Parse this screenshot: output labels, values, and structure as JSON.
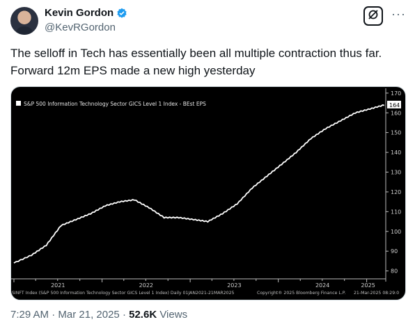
{
  "author": {
    "display_name": "Kevin Gordon",
    "handle": "@KevRGordon",
    "verified": true
  },
  "actions": {
    "grok_icon": "grok-icon",
    "more_icon": "more-icon",
    "more_label": "···"
  },
  "tweet": {
    "line1": "The selloff in Tech has essentially been all multiple contraction thus far.",
    "line2": "Forward 12m EPS made a new high yesterday"
  },
  "meta": {
    "time": "7:29 AM",
    "sep1": " · ",
    "date": "Mar 21, 2025",
    "sep2": " · ",
    "views_count": "52.6K",
    "views_label": " Views"
  },
  "chart_data": {
    "type": "line",
    "legend": "S&P 500 Information Technology Sector GICS Level 1 Index - BEst EPS",
    "last_value_label": "164",
    "x_tick_labels": [
      "2021",
      "2022",
      "2023",
      "2024",
      "2025"
    ],
    "y_ticks": [
      80,
      90,
      100,
      110,
      120,
      130,
      140,
      150,
      160,
      170
    ],
    "ylim": [
      76,
      171
    ],
    "x": [
      "2021-01",
      "2021-03",
      "2021-05",
      "2021-07",
      "2021-09",
      "2021-11",
      "2022-01",
      "2022-03",
      "2022-05",
      "2022-07",
      "2022-09",
      "2022-11",
      "2023-01",
      "2023-03",
      "2023-05",
      "2023-07",
      "2023-09",
      "2023-11",
      "2024-01",
      "2024-03",
      "2024-05",
      "2024-07",
      "2024-09",
      "2024-11",
      "2025-01",
      "2025-03"
    ],
    "values": [
      84,
      88,
      93,
      103,
      106,
      109,
      113,
      115,
      116,
      112,
      107,
      107,
      106,
      105,
      109,
      114,
      122,
      128,
      134,
      140,
      147,
      152,
      156,
      160,
      162,
      164
    ],
    "footer_left": "SINFT Index (S&P 500 Information Technology Sector GICS Level 1 Index)  Daily 01JAN2021-21MAR2025",
    "footer_mid": "Copyright® 2025 Bloomberg Finance L.P.",
    "footer_right": "21-Mar-2025 08:29:0",
    "colors": {
      "background": "#000000",
      "line": "#ffffff",
      "axis_text": "#cfcfcf",
      "gridline": "#2a2a2a"
    }
  }
}
